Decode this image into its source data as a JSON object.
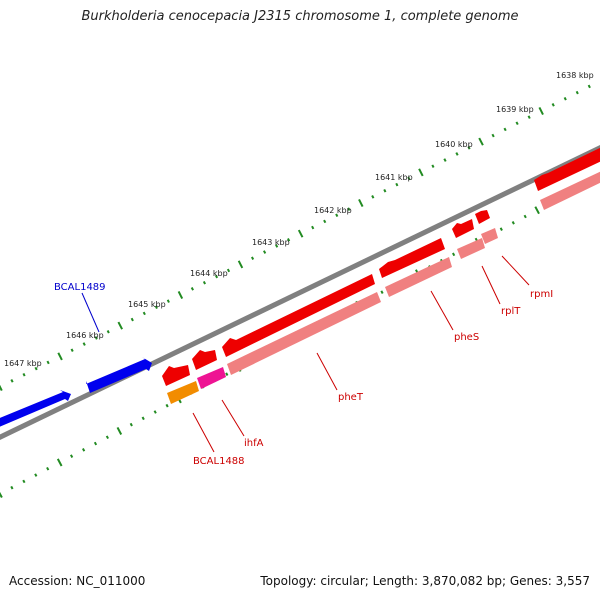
{
  "title": "Burkholderia cenocepacia J2315 chromosome 1, complete genome",
  "accession": "Accession: NC_011000",
  "summary": "Topology: circular; Length: 3,870,082 bp; Genes: 3,557",
  "ticks": [
    "1638 kbp",
    "1639 kbp",
    "1640 kbp",
    "1641 kbp",
    "1642 kbp",
    "1643 kbp",
    "1644 kbp",
    "1645 kbp",
    "1646 kbp",
    "1647 kbp"
  ],
  "genes": {
    "bcal1489": "BCAL1489",
    "rpmi": "rpmI",
    "rplt": "rplT",
    "phes": "pheS",
    "phet": "pheT",
    "ihfa": "ihfA",
    "bcal1488": "BCAL1488"
  },
  "colors": {
    "forward_gene": "#0000ee",
    "reverse_gene": "#ee0000",
    "reverse_gene_light": "#f08080",
    "ihfA": "#ee1493",
    "bcal1488": "#f28c00",
    "backbone": "#808080",
    "ticks": "#228b22"
  }
}
